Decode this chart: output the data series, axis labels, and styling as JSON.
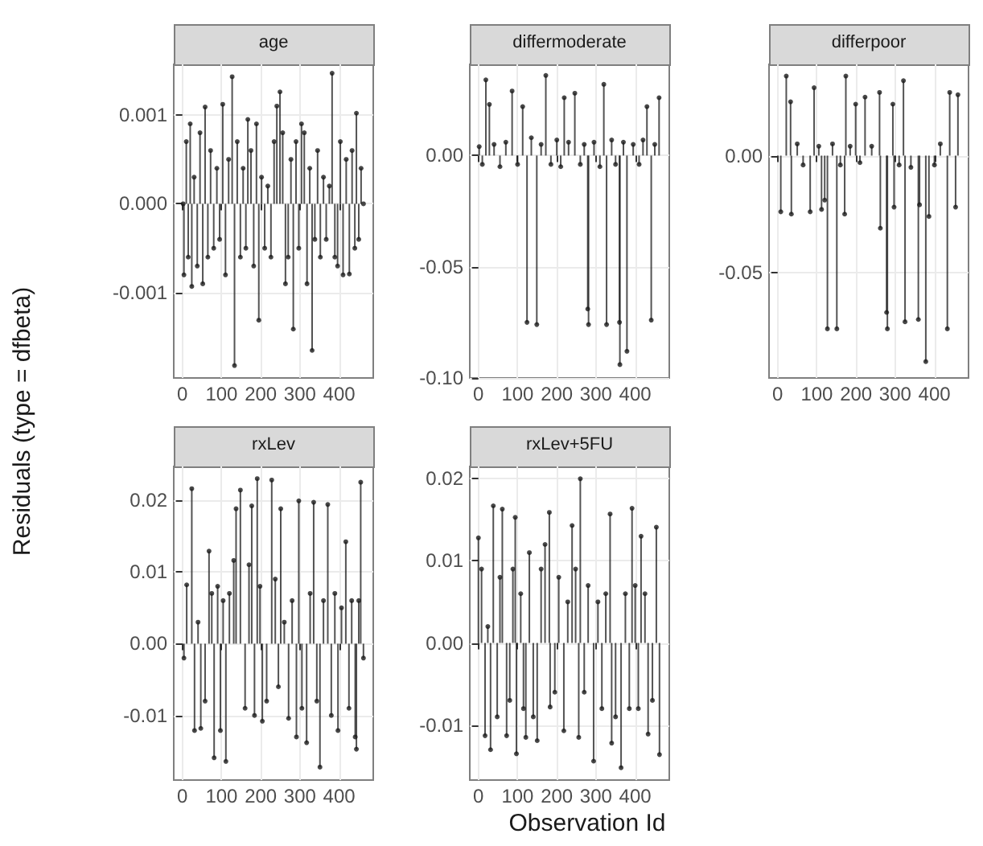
{
  "chart_data": [
    {
      "type": "lollipop",
      "title": "age",
      "ylabel": "Residuals (type = dfbeta)",
      "xlabel": "Observation Id",
      "color": "#1a1a1a",
      "marker": "circle",
      "grid": true,
      "xlim": [
        -22,
        487
      ],
      "xticks": [
        0,
        100,
        200,
        300,
        400
      ],
      "ylim": [
        -0.00196,
        0.00157
      ],
      "yticks": [
        {
          "value": -0.001,
          "label": "-0.001"
        },
        {
          "value": 0,
          "label": "0.000"
        },
        {
          "value": 0.001,
          "label": "0.001"
        }
      ],
      "x": [
        2,
        4,
        10,
        15,
        20,
        24,
        30,
        38,
        45,
        52,
        58,
        65,
        72,
        80,
        88,
        95,
        103,
        110,
        118,
        127,
        133,
        140,
        148,
        155,
        162,
        167,
        175,
        182,
        189,
        195,
        202,
        210,
        218,
        226,
        234,
        241,
        249,
        256,
        263,
        270,
        277,
        283,
        290,
        297,
        304,
        311,
        318,
        325,
        331,
        338,
        345,
        352,
        360,
        367,
        375,
        382,
        389,
        396,
        403,
        410,
        418,
        426,
        433,
        440,
        444,
        450,
        456,
        462
      ],
      "values": [
        0.0,
        -0.0008,
        0.0007,
        -0.0006,
        0.0009,
        -0.00093,
        0.0003,
        -0.0007,
        0.0008,
        -0.0009,
        0.00109,
        -0.0006,
        0.0006,
        -0.0005,
        0.0004,
        -0.0004,
        0.00112,
        -0.0008,
        0.0005,
        0.00143,
        -0.00182,
        0.0007,
        -0.0006,
        0.0004,
        -0.0005,
        0.00095,
        0.0006,
        -0.0007,
        0.0009,
        -0.00131,
        0.0003,
        -0.0005,
        0.0002,
        -0.0006,
        0.0007,
        0.0011,
        0.00126,
        0.0008,
        -0.0009,
        -0.0006,
        0.0005,
        -0.00141,
        0.0007,
        -0.0005,
        0.0009,
        0.0008,
        -0.0009,
        0.0004,
        -0.00165,
        -0.0004,
        0.0006,
        -0.0006,
        0.0003,
        -0.0004,
        0.0002,
        0.00147,
        -0.0006,
        -0.0007,
        0.0007,
        -0.0008,
        0.0005,
        -0.00079,
        0.0006,
        -0.0005,
        0.00102,
        -0.0004,
        0.0004,
        0.0
      ]
    },
    {
      "type": "lollipop",
      "title": "differmoderate",
      "color": "#1a1a1a",
      "marker": "circle",
      "grid": true,
      "xlim": [
        -22,
        487
      ],
      "xticks": [
        0,
        100,
        200,
        300,
        400
      ],
      "ylim": [
        -0.1,
        0.041
      ],
      "yticks": [
        {
          "value": -0.1,
          "label": "-0.10"
        },
        {
          "value": -0.05,
          "label": "-0.05"
        },
        {
          "value": 0,
          "label": "0.00"
        }
      ],
      "x": [
        2,
        10,
        19,
        28,
        40,
        55,
        70,
        86,
        100,
        113,
        124,
        135,
        149,
        160,
        172,
        185,
        200,
        210,
        219,
        230,
        246,
        260,
        270,
        279,
        281,
        295,
        310,
        320,
        327,
        340,
        350,
        360,
        361,
        370,
        379,
        395,
        410,
        420,
        430,
        441,
        450,
        461
      ],
      "values": [
        0.004,
        -0.004,
        0.034,
        0.023,
        0.005,
        -0.005,
        0.006,
        0.029,
        -0.004,
        0.022,
        -0.075,
        0.008,
        -0.076,
        0.005,
        0.036,
        -0.004,
        0.007,
        -0.005,
        0.026,
        0.006,
        0.028,
        -0.004,
        0.005,
        -0.069,
        -0.076,
        0.006,
        -0.005,
        0.032,
        -0.076,
        0.007,
        -0.004,
        -0.075,
        -0.094,
        0.006,
        -0.088,
        0.005,
        -0.004,
        0.007,
        0.022,
        -0.074,
        0.005,
        0.026
      ]
    },
    {
      "type": "lollipop",
      "title": "differpoor",
      "color": "#1a1a1a",
      "marker": "circle",
      "grid": true,
      "xlim": [
        -22,
        487
      ],
      "xticks": [
        0,
        100,
        200,
        300,
        400
      ],
      "ylim": [
        -0.095,
        0.039
      ],
      "yticks": [
        {
          "value": -0.05,
          "label": "-0.05"
        },
        {
          "value": 0,
          "label": "0.00"
        }
      ],
      "x": [
        8,
        22,
        33,
        35,
        50,
        65,
        83,
        93,
        105,
        112,
        120,
        127,
        140,
        151,
        160,
        171,
        174,
        185,
        199,
        210,
        223,
        240,
        260,
        262,
        278,
        280,
        294,
        297,
        310,
        321,
        325,
        340,
        359,
        362,
        378,
        386,
        400,
        415,
        433,
        439,
        454,
        460
      ],
      "values": [
        -0.024,
        0.034,
        0.023,
        -0.025,
        0.005,
        -0.004,
        -0.024,
        0.029,
        0.004,
        -0.023,
        -0.019,
        -0.074,
        0.005,
        -0.074,
        -0.004,
        -0.025,
        0.034,
        0.004,
        0.022,
        -0.003,
        0.025,
        0.004,
        0.027,
        -0.031,
        -0.067,
        -0.074,
        0.022,
        -0.022,
        -0.004,
        0.032,
        -0.071,
        -0.005,
        -0.07,
        -0.021,
        -0.088,
        -0.026,
        -0.004,
        0.005,
        -0.074,
        0.027,
        -0.022,
        0.026
      ]
    },
    {
      "type": "lollipop",
      "title": "rxLev",
      "color": "#1a1a1a",
      "marker": "circle",
      "grid": true,
      "xlim": [
        -22,
        487
      ],
      "xticks": [
        0,
        100,
        200,
        300,
        400
      ],
      "ylim": [
        -0.019,
        0.0247
      ],
      "yticks": [
        {
          "value": -0.01,
          "label": "-0.01"
        },
        {
          "value": 0,
          "label": "0.00"
        },
        {
          "value": 0.01,
          "label": "0.01"
        },
        {
          "value": 0.02,
          "label": "0.02"
        }
      ],
      "x": [
        4,
        11,
        24,
        31,
        40,
        47,
        58,
        68,
        75,
        81,
        90,
        97,
        104,
        111,
        120,
        131,
        137,
        148,
        160,
        170,
        177,
        184,
        191,
        198,
        204,
        215,
        228,
        237,
        245,
        251,
        260,
        271,
        280,
        291,
        297,
        305,
        317,
        326,
        335,
        343,
        351,
        360,
        371,
        380,
        389,
        397,
        406,
        417,
        425,
        432,
        441,
        444,
        450,
        455,
        462
      ],
      "values": [
        -0.002,
        0.0082,
        0.0216,
        -0.0121,
        0.003,
        -0.0118,
        -0.008,
        0.0129,
        0.007,
        -0.0159,
        0.008,
        -0.0121,
        0.006,
        -0.0164,
        0.007,
        0.0116,
        0.0188,
        0.0214,
        -0.009,
        0.011,
        0.0192,
        -0.01,
        0.023,
        0.008,
        -0.0108,
        -0.008,
        0.0228,
        0.009,
        -0.006,
        0.0188,
        0.003,
        -0.0104,
        0.006,
        -0.013,
        0.0199,
        -0.009,
        -0.0138,
        0.007,
        0.0197,
        -0.008,
        -0.0172,
        0.006,
        0.0194,
        -0.01,
        0.007,
        -0.0121,
        0.005,
        0.0142,
        -0.009,
        0.006,
        -0.013,
        -0.0147,
        0.006,
        0.0225,
        -0.002
      ]
    },
    {
      "type": "lollipop",
      "title": "rxLev+5FU",
      "color": "#1a1a1a",
      "marker": "circle",
      "grid": true,
      "xlim": [
        -22,
        487
      ],
      "xticks": [
        0,
        100,
        200,
        300,
        400
      ],
      "ylim": [
        -0.0167,
        0.0215
      ],
      "yticks": [
        {
          "value": -0.01,
          "label": "-0.01"
        },
        {
          "value": 0,
          "label": "0.00"
        },
        {
          "value": 0.01,
          "label": "0.01"
        },
        {
          "value": 0.02,
          "label": "0.02"
        }
      ],
      "x": [
        0,
        8,
        17,
        24,
        31,
        38,
        48,
        55,
        61,
        72,
        80,
        88,
        94,
        97,
        108,
        115,
        121,
        130,
        140,
        150,
        160,
        170,
        181,
        183,
        195,
        205,
        218,
        228,
        239,
        248,
        256,
        260,
        270,
        280,
        294,
        305,
        315,
        325,
        336,
        340,
        350,
        364,
        375,
        385,
        392,
        400,
        408,
        415,
        425,
        433,
        444,
        454,
        462
      ],
      "values": [
        0.0128,
        0.009,
        -0.0113,
        0.002,
        -0.013,
        0.0167,
        -0.009,
        0.008,
        0.0163,
        -0.0113,
        -0.007,
        0.009,
        0.0153,
        -0.0135,
        0.006,
        -0.008,
        -0.0115,
        0.011,
        -0.009,
        -0.0119,
        0.009,
        0.012,
        0.0159,
        -0.0078,
        -0.006,
        0.008,
        -0.0107,
        0.005,
        0.0143,
        0.009,
        -0.0115,
        0.02,
        -0.006,
        0.007,
        -0.0144,
        0.005,
        -0.008,
        0.006,
        0.0157,
        -0.0122,
        -0.009,
        -0.0152,
        0.006,
        -0.008,
        0.0164,
        0.007,
        -0.008,
        0.013,
        0.006,
        -0.0111,
        -0.007,
        0.0141,
        -0.0136
      ]
    }
  ]
}
